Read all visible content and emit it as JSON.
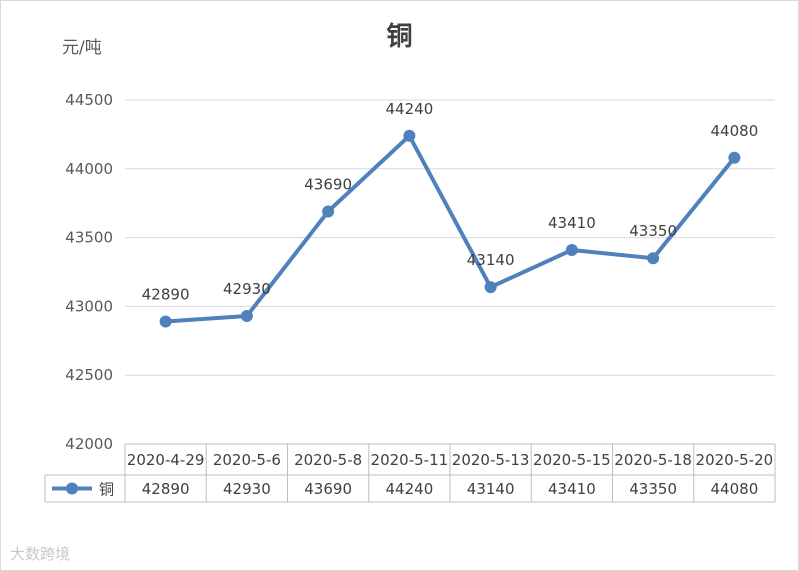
{
  "chart_data": {
    "type": "line",
    "title": "铜",
    "ylabel": "元/吨",
    "categories": [
      "2020-4-29",
      "2020-5-6",
      "2020-5-8",
      "2020-5-11",
      "2020-5-13",
      "2020-5-15",
      "2020-5-18",
      "2020-5-20"
    ],
    "series": [
      {
        "name": "铜",
        "values": [
          42890,
          42930,
          43690,
          44240,
          43140,
          43410,
          43350,
          44080
        ],
        "color": "#4f81bd"
      }
    ],
    "ylim": [
      42000,
      44500
    ],
    "yticks": [
      42000,
      42500,
      43000,
      43500,
      44000,
      44500
    ],
    "grid": true,
    "data_table": true
  },
  "watermark": "大数跨境"
}
